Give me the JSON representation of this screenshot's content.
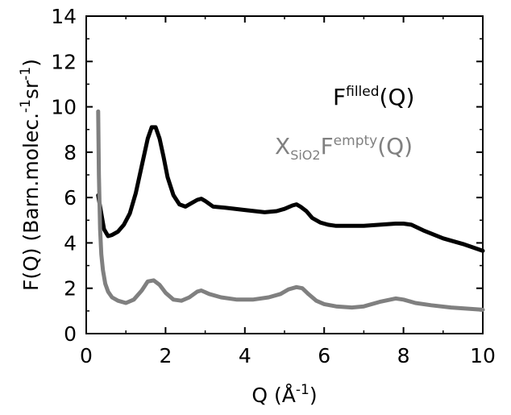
{
  "chart_data": {
    "type": "line",
    "xlabel": {
      "main": "Q (Å",
      "sup": "-1",
      "tail": ")"
    },
    "ylabel": {
      "main": "F(Q) (Barn.molec.",
      "sup1": "-1",
      "mid": "sr",
      "sup2": "-1",
      "tail": ")"
    },
    "xlim": [
      0,
      10
    ],
    "ylim": [
      0,
      14
    ],
    "xticks": [
      "0",
      "2",
      "4",
      "6",
      "8",
      "10"
    ],
    "yticks": [
      "0",
      "2",
      "4",
      "6",
      "8",
      "10",
      "12",
      "14"
    ],
    "grid": false,
    "legend_position": "top-right (text labels inside plot)",
    "series": [
      {
        "name": "F^filled(Q)",
        "color": "#000000",
        "label_parts": {
          "base": "F",
          "sup": "filled",
          "tail": "(Q)"
        },
        "x": [
          0.3,
          0.35,
          0.45,
          0.55,
          0.65,
          0.8,
          0.95,
          1.1,
          1.25,
          1.4,
          1.55,
          1.65,
          1.75,
          1.85,
          1.95,
          2.05,
          2.2,
          2.35,
          2.5,
          2.65,
          2.8,
          2.9,
          3.0,
          3.2,
          3.5,
          4.0,
          4.5,
          4.8,
          5.0,
          5.2,
          5.3,
          5.4,
          5.55,
          5.7,
          5.9,
          6.1,
          6.3,
          6.6,
          7.0,
          7.4,
          7.8,
          8.0,
          8.2,
          8.5,
          9.0,
          9.5,
          10.0
        ],
        "y": [
          6.1,
          5.6,
          4.6,
          4.3,
          4.35,
          4.5,
          4.8,
          5.3,
          6.2,
          7.4,
          8.6,
          9.1,
          9.1,
          8.6,
          7.8,
          6.9,
          6.1,
          5.7,
          5.6,
          5.75,
          5.9,
          5.95,
          5.85,
          5.6,
          5.55,
          5.45,
          5.35,
          5.4,
          5.5,
          5.65,
          5.7,
          5.6,
          5.4,
          5.1,
          4.9,
          4.8,
          4.75,
          4.75,
          4.75,
          4.8,
          4.85,
          4.85,
          4.8,
          4.55,
          4.2,
          3.95,
          3.65
        ]
      },
      {
        "name": "X_SiO2 F^empty(Q)",
        "color": "#808080",
        "label_parts": {
          "base": "X",
          "sub": "SiO2",
          "mid": "F",
          "sup": "empty",
          "tail": "(Q)"
        },
        "x": [
          0.3,
          0.32,
          0.35,
          0.38,
          0.42,
          0.48,
          0.55,
          0.65,
          0.8,
          1.0,
          1.2,
          1.4,
          1.55,
          1.7,
          1.85,
          2.0,
          2.2,
          2.4,
          2.6,
          2.8,
          2.9,
          3.1,
          3.4,
          3.8,
          4.2,
          4.6,
          4.9,
          5.1,
          5.3,
          5.45,
          5.6,
          5.8,
          6.0,
          6.3,
          6.7,
          7.0,
          7.4,
          7.8,
          8.0,
          8.3,
          8.7,
          9.2,
          9.6,
          10.0
        ],
        "y": [
          9.8,
          7.0,
          4.6,
          3.5,
          2.8,
          2.2,
          1.85,
          1.6,
          1.45,
          1.35,
          1.5,
          1.9,
          2.3,
          2.35,
          2.15,
          1.8,
          1.5,
          1.45,
          1.6,
          1.85,
          1.9,
          1.75,
          1.6,
          1.5,
          1.5,
          1.6,
          1.75,
          1.95,
          2.05,
          2.0,
          1.75,
          1.45,
          1.3,
          1.2,
          1.15,
          1.2,
          1.4,
          1.55,
          1.5,
          1.35,
          1.25,
          1.15,
          1.1,
          1.05
        ]
      }
    ]
  }
}
